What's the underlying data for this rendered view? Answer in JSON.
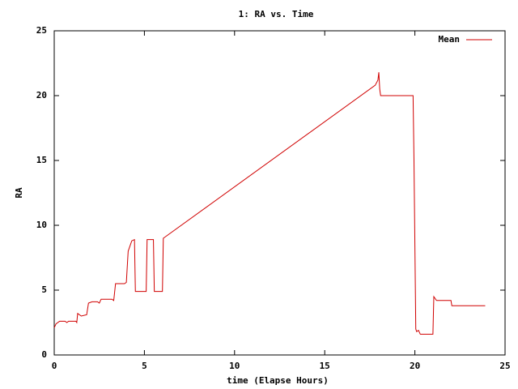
{
  "chart_data": {
    "type": "line",
    "title": "1: RA vs. Time",
    "xlabel": "time (Elapse Hours)",
    "ylabel": "RA",
    "x": [
      0,
      0.1,
      0.3,
      0.6,
      0.7,
      0.8,
      1.2,
      1.25,
      1.3,
      1.5,
      1.8,
      1.9,
      2.1,
      2.4,
      2.5,
      2.6,
      3.2,
      3.3,
      3.4,
      3.9,
      4.0,
      4.1,
      4.2,
      4.3,
      4.45,
      4.5,
      5.1,
      5.15,
      5.5,
      5.55,
      6.0,
      6.05,
      6.15,
      17.8,
      17.95,
      18.0,
      18.05,
      18.1,
      19.9,
      19.95,
      20.05,
      20.1,
      20.2,
      20.3,
      21.0,
      21.05,
      21.2,
      22.0,
      22.05,
      23.9
    ],
    "series": [
      {
        "name": "Mean",
        "color": "#d00000",
        "values": [
          2.1,
          2.4,
          2.6,
          2.6,
          2.5,
          2.6,
          2.6,
          2.5,
          3.2,
          3.0,
          3.1,
          4.0,
          4.1,
          4.1,
          4.0,
          4.3,
          4.3,
          4.2,
          5.5,
          5.5,
          5.6,
          8.0,
          8.4,
          8.8,
          8.9,
          4.9,
          4.9,
          8.9,
          8.9,
          4.9,
          4.9,
          9.0,
          9.1,
          20.8,
          21.2,
          21.8,
          20.5,
          20.0,
          20.0,
          15.0,
          2.0,
          1.8,
          1.9,
          1.6,
          1.6,
          4.5,
          4.2,
          4.2,
          3.8,
          3.8
        ]
      }
    ],
    "xlim": [
      0,
      25
    ],
    "xticks": [
      0,
      5,
      10,
      15,
      20,
      25
    ],
    "ylim": [
      0,
      25
    ],
    "yticks": [
      0,
      5,
      10,
      15,
      20,
      25
    ],
    "grid": false,
    "legend": "top-right"
  }
}
